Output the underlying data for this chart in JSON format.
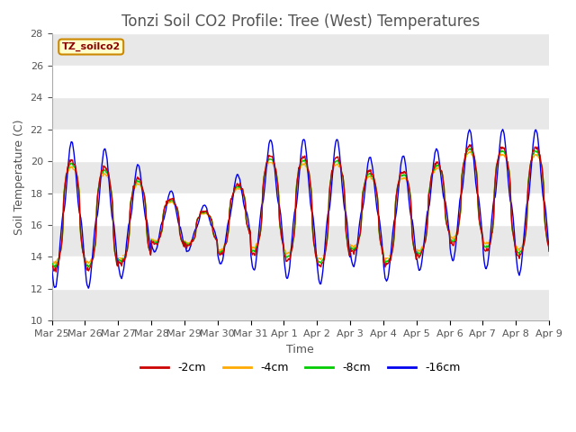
{
  "title": "Tonzi Soil CO2 Profile: Tree (West) Temperatures",
  "xlabel": "Time",
  "ylabel": "Soil Temperature (C)",
  "ylim": [
    10,
    28
  ],
  "yticks": [
    10,
    12,
    14,
    16,
    18,
    20,
    22,
    24,
    26,
    28
  ],
  "legend_label": "TZ_soilco2",
  "series_labels": [
    "-2cm",
    "-4cm",
    "-8cm",
    "-16cm"
  ],
  "series_colors": [
    "#cc0000",
    "#ffaa00",
    "#00cc00",
    "#0000ee"
  ],
  "bg_color": "#ffffff",
  "plot_bg_color": "#ffffff",
  "xtick_labels": [
    "Mar 25",
    "Mar 26",
    "Mar 27",
    "Mar 28",
    "Mar 29",
    "Mar 30",
    "Mar 31",
    "Apr 1",
    "Apr 2",
    "Apr 3",
    "Apr 4",
    "Apr 5",
    "Apr 6",
    "Apr 7",
    "Apr 8",
    "Apr 9"
  ],
  "title_fontsize": 12,
  "label_fontsize": 9,
  "tick_fontsize": 8
}
